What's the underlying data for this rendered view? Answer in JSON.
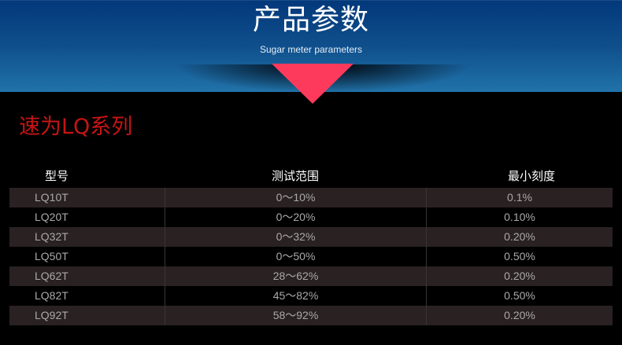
{
  "banner": {
    "title": "产品参数",
    "subtitle": "Sugar meter parameters",
    "accent": "#fe3a5c"
  },
  "series_title": "速为LQ系列",
  "table": {
    "headers": [
      "型号",
      "测试范围",
      "最小刻度"
    ],
    "rows": [
      [
        "LQ10T",
        "0～10%",
        "0.1%"
      ],
      [
        "LQ20T",
        "0～20%",
        "0.10%"
      ],
      [
        "LQ32T",
        "0～32%",
        "0.20%"
      ],
      [
        "LQ50T",
        "0～50%",
        "0.50%"
      ],
      [
        "LQ62T",
        "28～62%",
        "0.20%"
      ],
      [
        "LQ82T",
        "45～82%",
        "0.50%"
      ],
      [
        "LQ92T",
        "58～92%",
        "0.20%"
      ]
    ]
  }
}
